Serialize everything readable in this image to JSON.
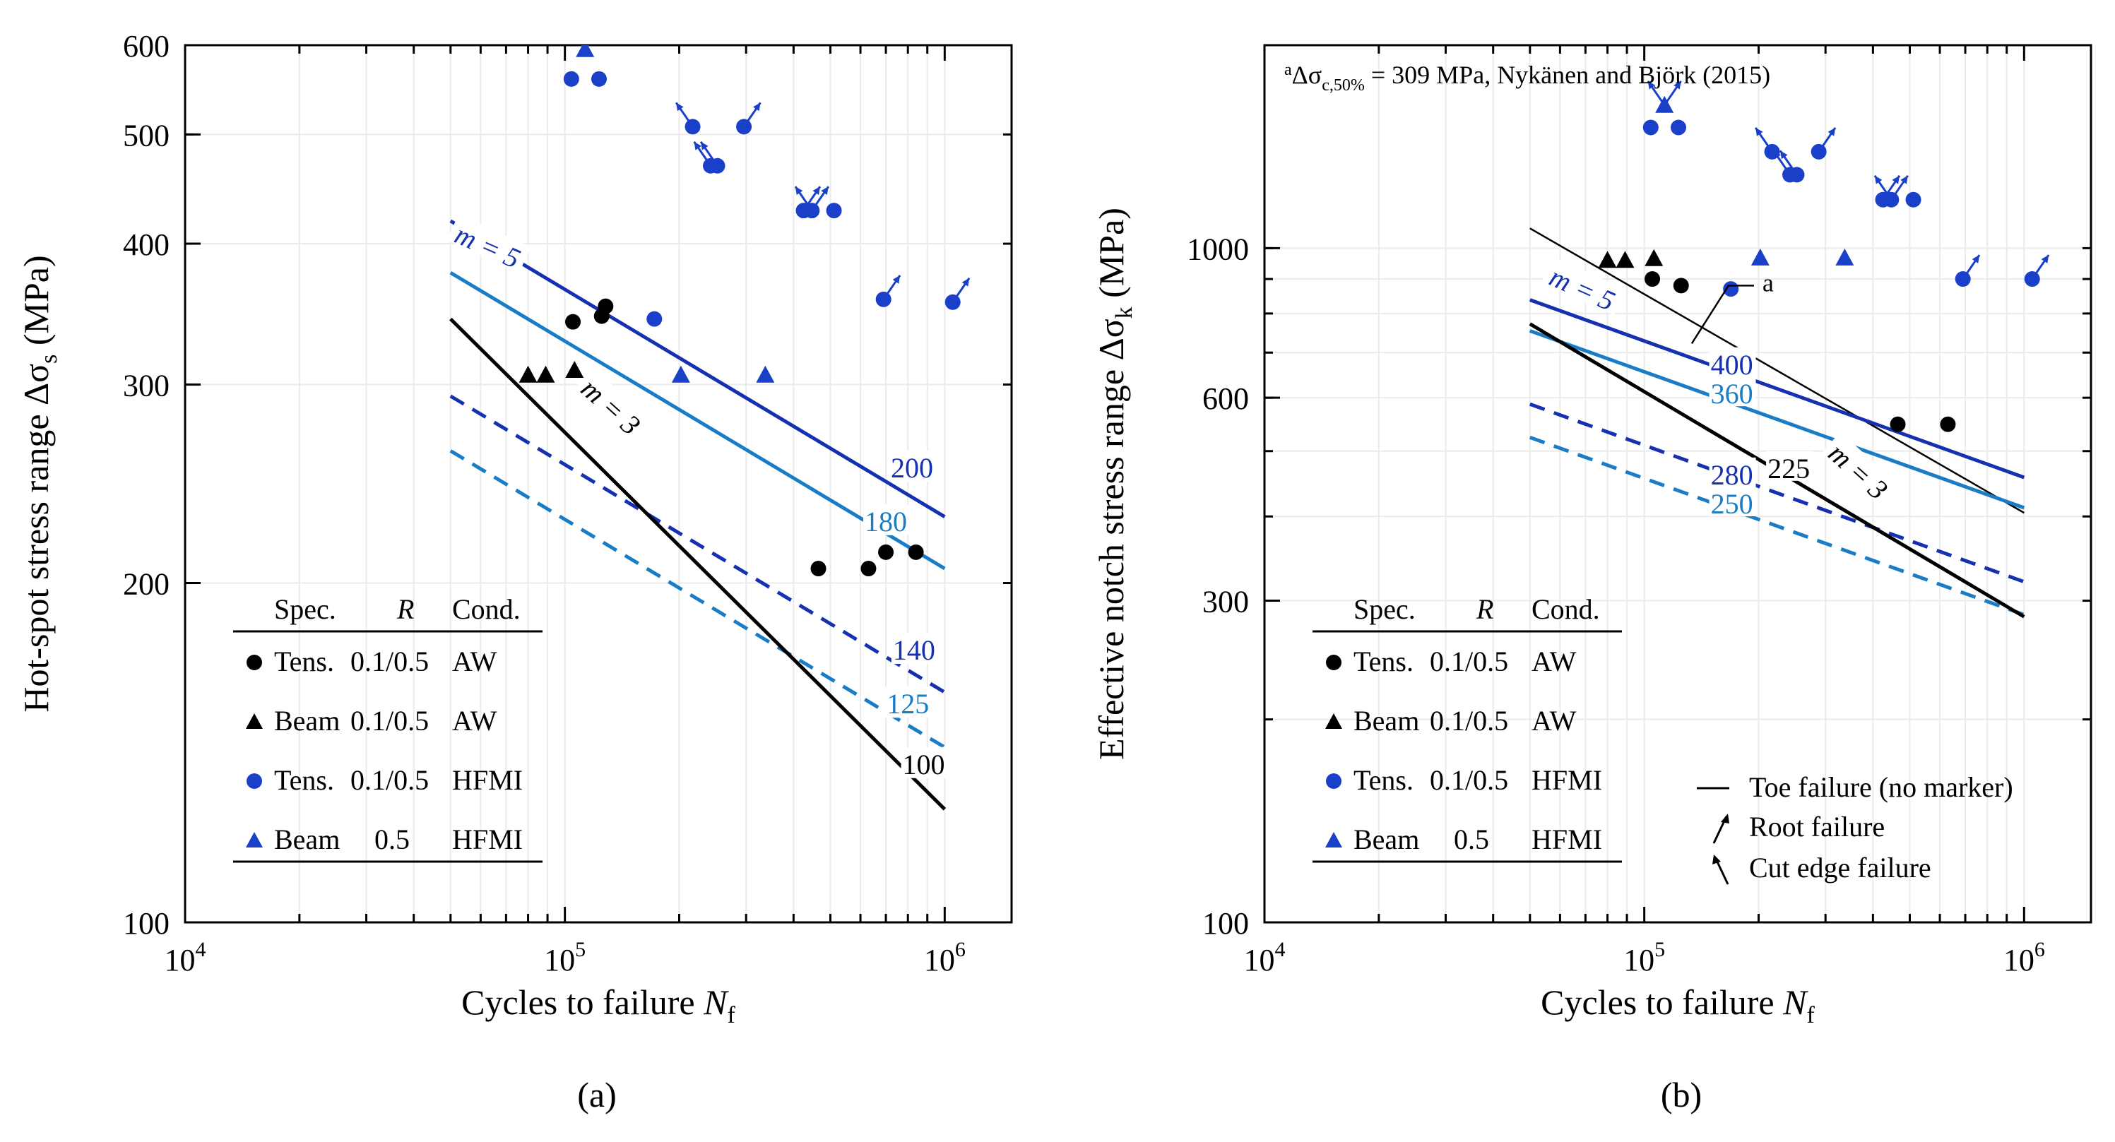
{
  "colors": {
    "dark_blue": "#1530b0",
    "light_blue": "#1a7cc4",
    "black": "#000000",
    "marker_blue": "#1a3fc9"
  },
  "chart_data": [
    {
      "type": "scatter",
      "caption": "(a)",
      "xscale": "log",
      "yscale": "log",
      "xlim": [
        10000,
        1500000
      ],
      "ylim": [
        100,
        600
      ],
      "xlabel": "Cycles to failure N_f",
      "xlabel_main": "Cycles to failure ",
      "xlabel_var": "N",
      "xlabel_sub": "f",
      "ylabel": "Hot-spot stress range Δσ_s (MPa)",
      "ylabel_main": "Hot-spot stress range Δσ",
      "ylabel_sub": "s",
      "ylabel_unit": " (MPa)",
      "xtick_labels": [
        {
          "value": 10000,
          "base": "10",
          "exp": "4"
        },
        {
          "value": 100000,
          "base": "10",
          "exp": "5"
        },
        {
          "value": 1000000,
          "base": "10",
          "exp": "6"
        }
      ],
      "yticks": [
        100,
        200,
        300,
        400,
        500,
        600
      ],
      "ytick_labels": [
        "100",
        "200",
        "300",
        "400",
        "500",
        "600"
      ],
      "legend": {
        "header": [
          "Spec.",
          "R",
          "Cond."
        ],
        "entries": [
          {
            "marker": "circle",
            "color": "black",
            "spec": "Tens.",
            "R": "0.1/0.5",
            "cond": "AW"
          },
          {
            "marker": "triangle",
            "color": "black",
            "spec": "Beam",
            "R": "0.1/0.5",
            "cond": "AW"
          },
          {
            "marker": "circle",
            "color": "blue",
            "spec": "Tens.",
            "R": "0.1/0.5",
            "cond": "HFMI"
          },
          {
            "marker": "triangle",
            "color": "blue",
            "spec": "Beam",
            "R": "0.5",
            "cond": "HFMI"
          }
        ]
      },
      "slope_labels": [
        {
          "text": "m = 5",
          "color": "dark_blue",
          "x": 62000,
          "y": 395
        },
        {
          "text": "m = 3",
          "color": "black",
          "x": 130000,
          "y": 285
        }
      ],
      "series": [
        {
          "name": "FAT 200 (m=5)",
          "type": "line",
          "style": "solid",
          "color": "dark_blue",
          "x": [
            50000,
            1000000
          ],
          "y": [
            419,
            229
          ],
          "label": "200",
          "label_at": [
            820000,
            251
          ]
        },
        {
          "name": "FAT 180 (m=5)",
          "type": "line",
          "style": "solid",
          "color": "light_blue",
          "x": [
            50000,
            1000000
          ],
          "y": [
            377,
            206
          ],
          "label": "180",
          "label_at": [
            700000,
            225
          ]
        },
        {
          "name": "FAT 140 (m=5)",
          "type": "line",
          "style": "dashed",
          "color": "dark_blue",
          "x": [
            50000,
            1000000
          ],
          "y": [
            293,
            160
          ],
          "label": "140",
          "label_at": [
            830000,
            173
          ]
        },
        {
          "name": "FAT 125 (m=5)",
          "type": "line",
          "style": "dashed",
          "color": "light_blue",
          "x": [
            50000,
            1000000
          ],
          "y": [
            262,
            143
          ],
          "label": "125",
          "label_at": [
            800000,
            155
          ]
        },
        {
          "name": "FAT 100 (m=3)",
          "type": "line",
          "style": "solid",
          "color": "black",
          "x": [
            50000,
            1000000
          ],
          "y": [
            343,
            126
          ],
          "label": "100",
          "label_at": [
            880000,
            137
          ]
        },
        {
          "name": "Tens. AW",
          "type": "points",
          "marker": "circle",
          "color": "black",
          "x": [
            105000,
            125000,
            128000,
            465000,
            630000,
            700000,
            840000
          ],
          "y": [
            341,
            345,
            352,
            206,
            206,
            213,
            213
          ]
        },
        {
          "name": "Beam AW",
          "type": "points",
          "marker": "triangle",
          "color": "black",
          "x": [
            80000,
            89000,
            106000
          ],
          "y": [
            306,
            306,
            309
          ]
        },
        {
          "name": "Tens. HFMI",
          "type": "points",
          "marker": "circle",
          "color": "marker_blue",
          "x": [
            104000,
            123000,
            172000,
            217000,
            242000,
            252000,
            296000,
            425000,
            447000,
            511000,
            690000,
            1050000
          ],
          "y": [
            560,
            560,
            343,
            508,
            469,
            469,
            508,
            428,
            428,
            428,
            357,
            355
          ]
        },
        {
          "name": "Beam HFMI",
          "type": "points",
          "marker": "triangle",
          "color": "marker_blue",
          "x": [
            113000,
            202000,
            337000
          ],
          "y": [
            595,
            306,
            306
          ]
        }
      ],
      "failure_arrows": [
        {
          "x": 113000,
          "y": 595,
          "kind": "cut"
        },
        {
          "x": 113000,
          "y": 595,
          "kind": "root"
        },
        {
          "x": 217000,
          "y": 508,
          "kind": "cut"
        },
        {
          "x": 242000,
          "y": 469,
          "kind": "cut"
        },
        {
          "x": 252000,
          "y": 469,
          "kind": "cut"
        },
        {
          "x": 296000,
          "y": 508,
          "kind": "root"
        },
        {
          "x": 425000,
          "y": 428,
          "kind": "root"
        },
        {
          "x": 447000,
          "y": 428,
          "kind": "root"
        },
        {
          "x": 447000,
          "y": 428,
          "kind": "cut"
        },
        {
          "x": 690000,
          "y": 357,
          "kind": "root"
        },
        {
          "x": 1050000,
          "y": 355,
          "kind": "root"
        }
      ]
    },
    {
      "type": "scatter",
      "caption": "(b)",
      "xscale": "log",
      "yscale": "log",
      "xlim": [
        10000,
        1500000
      ],
      "ylim": [
        100,
        2000
      ],
      "xlabel": "Cycles to failure N_f",
      "xlabel_main": "Cycles to failure ",
      "xlabel_var": "N",
      "xlabel_sub": "f",
      "ylabel": "Effective notch stress range Δσ_k (MPa)",
      "ylabel_main": "Effective notch stress range Δσ",
      "ylabel_sub": "k",
      "ylabel_unit": " (MPa)",
      "xtick_labels": [
        {
          "value": 10000,
          "base": "10",
          "exp": "4"
        },
        {
          "value": 100000,
          "base": "10",
          "exp": "5"
        },
        {
          "value": 1000000,
          "base": "10",
          "exp": "6"
        }
      ],
      "yticks": [
        100,
        300,
        600,
        1000
      ],
      "ytick_labels": [
        "100",
        "300",
        "600",
        "1000"
      ],
      "annotation": {
        "sup": "a",
        "main": "Δσ",
        "sub": "c,50%",
        "rest": " = 309 MPa, Nykänen and Björk (2015)"
      },
      "legend": {
        "header": [
          "Spec.",
          "R",
          "Cond."
        ],
        "entries": [
          {
            "marker": "circle",
            "color": "black",
            "spec": "Tens.",
            "R": "0.1/0.5",
            "cond": "AW"
          },
          {
            "marker": "triangle",
            "color": "black",
            "spec": "Beam",
            "R": "0.1/0.5",
            "cond": "AW"
          },
          {
            "marker": "circle",
            "color": "blue",
            "spec": "Tens.",
            "R": "0.1/0.5",
            "cond": "HFMI"
          },
          {
            "marker": "triangle",
            "color": "blue",
            "spec": "Beam",
            "R": "0.5",
            "cond": "HFMI"
          }
        ]
      },
      "failure_legend": [
        "Toe failure (no marker)",
        "Root failure",
        "Cut edge failure"
      ],
      "slope_labels": [
        {
          "text": "m = 5",
          "color": "dark_blue",
          "x": 68000,
          "y": 860
        },
        {
          "text": "m = 3",
          "color": "black",
          "x": 360000,
          "y": 462
        }
      ],
      "series": [
        {
          "name": "Nykänen and Björk (2015) (a)",
          "type": "line",
          "style": "solid",
          "color": "black",
          "x": [
            50000,
            1000000
          ],
          "y": [
            1070,
            405
          ],
          "label": "a",
          "label_at": [
            180000,
            880
          ]
        },
        {
          "name": "FAT 400 (m=5)",
          "type": "line",
          "style": "solid",
          "color": "dark_blue",
          "x": [
            50000,
            1000000
          ],
          "y": [
            838,
            457
          ]
        },
        {
          "name": "FAT 360 (m=5)",
          "type": "line",
          "style": "solid",
          "color": "light_blue",
          "x": [
            50000,
            1000000
          ],
          "y": [
            754,
            412
          ]
        },
        {
          "name": "FAT 280 (m=5)",
          "type": "line",
          "style": "dashed",
          "color": "dark_blue",
          "x": [
            50000,
            1000000
          ],
          "y": [
            587,
            320
          ]
        },
        {
          "name": "FAT 250 (m=5)",
          "type": "line",
          "style": "dashed",
          "color": "light_blue",
          "x": [
            50000,
            1000000
          ],
          "y": [
            524,
            286
          ]
        },
        {
          "name": "FAT 225 (m=3)",
          "type": "line",
          "style": "solid",
          "color": "black",
          "x": [
            50000,
            1000000
          ],
          "y": [
            772,
            284
          ]
        },
        {
          "name": "Tens. AW",
          "type": "points",
          "marker": "circle",
          "color": "black",
          "x": [
            105000,
            125000,
            465000,
            630000
          ],
          "y": [
            900,
            880,
            548,
            548
          ]
        },
        {
          "name": "Beam AW",
          "type": "points",
          "marker": "triangle",
          "color": "black",
          "x": [
            80000,
            89000,
            106000
          ],
          "y": [
            960,
            960,
            966
          ]
        },
        {
          "name": "Tens. HFMI",
          "type": "points",
          "marker": "circle",
          "color": "marker_blue",
          "x": [
            104000,
            123000,
            169000,
            217000,
            242000,
            252000,
            288000,
            425000,
            447000,
            511000,
            690000,
            1050000
          ],
          "y": [
            1510,
            1510,
            870,
            1390,
            1285,
            1285,
            1390,
            1180,
            1180,
            1180,
            900,
            900
          ]
        },
        {
          "name": "Beam HFMI",
          "type": "points",
          "marker": "triangle",
          "color": "marker_blue",
          "x": [
            113000,
            202000,
            337000
          ],
          "y": [
            1630,
            968,
            968
          ]
        }
      ],
      "fat_labels": [
        {
          "text": "400",
          "color": "dark_blue",
          "x": 170000,
          "y": 663
        },
        {
          "text": "360",
          "color": "light_blue",
          "x": 170000,
          "y": 600
        },
        {
          "text": "280",
          "color": "dark_blue",
          "x": 170000,
          "y": 455
        },
        {
          "text": "250",
          "color": "light_blue",
          "x": 170000,
          "y": 412
        },
        {
          "text": "225",
          "color": "black",
          "x": 240000,
          "y": 465
        }
      ],
      "failure_arrows": [
        {
          "x": 113000,
          "y": 1630,
          "kind": "cut"
        },
        {
          "x": 113000,
          "y": 1630,
          "kind": "root"
        },
        {
          "x": 217000,
          "y": 1390,
          "kind": "cut"
        },
        {
          "x": 242000,
          "y": 1285,
          "kind": "cut"
        },
        {
          "x": 252000,
          "y": 1285,
          "kind": "cut"
        },
        {
          "x": 288000,
          "y": 1390,
          "kind": "root"
        },
        {
          "x": 425000,
          "y": 1180,
          "kind": "root"
        },
        {
          "x": 447000,
          "y": 1180,
          "kind": "root"
        },
        {
          "x": 447000,
          "y": 1180,
          "kind": "cut"
        },
        {
          "x": 690000,
          "y": 900,
          "kind": "root"
        },
        {
          "x": 1050000,
          "y": 900,
          "kind": "root"
        }
      ]
    }
  ]
}
